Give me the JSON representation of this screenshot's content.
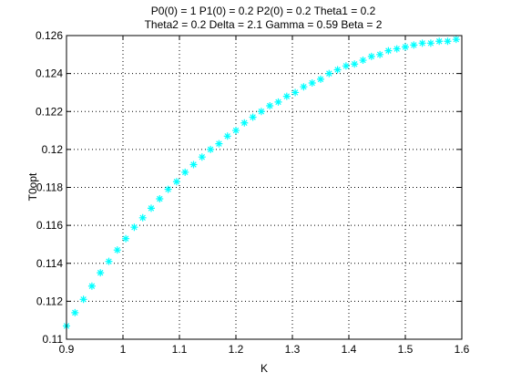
{
  "chart_data": {
    "type": "scatter",
    "title_lines": [
      "P0(0) = 1 P1(0) = 0.2 P2(0) = 0.2 Theta1 = 0.2",
      "Theta2 = 0.2 Delta = 2.1 Gamma = 0.59 Beta = 2"
    ],
    "xlabel": "K",
    "ylabel": "T0opt",
    "xlim": [
      0.9,
      1.6
    ],
    "ylim": [
      0.11,
      0.126
    ],
    "xticks": [
      0.9,
      1,
      1.1,
      1.2,
      1.3,
      1.4,
      1.5,
      1.6
    ],
    "xtick_labels": [
      "0.9",
      "1",
      "1.1",
      "1.2",
      "1.3",
      "1.4",
      "1.5",
      "1.6"
    ],
    "yticks": [
      0.11,
      0.112,
      0.114,
      0.116,
      0.118,
      0.12,
      0.122,
      0.124,
      0.126
    ],
    "ytick_labels": [
      "0.11",
      "0.112",
      "0.114",
      "0.116",
      "0.118",
      "0.12",
      "0.122",
      "0.124",
      "0.126"
    ],
    "grid": true,
    "marker": "*",
    "series": [
      {
        "color": "#00ffff",
        "x": [
          0.9,
          0.915,
          0.93,
          0.945,
          0.96,
          0.975,
          0.99,
          1.005,
          1.02,
          1.035,
          1.05,
          1.065,
          1.08,
          1.095,
          1.11,
          1.125,
          1.14,
          1.155,
          1.17,
          1.185,
          1.2,
          1.215,
          1.23,
          1.245,
          1.26,
          1.275,
          1.29,
          1.305,
          1.32,
          1.335,
          1.35,
          1.365,
          1.38,
          1.395,
          1.41,
          1.425,
          1.44,
          1.455,
          1.47,
          1.485,
          1.5,
          1.515,
          1.53,
          1.545,
          1.56,
          1.575,
          1.59
        ],
        "y": [
          0.1107,
          0.1114,
          0.1121,
          0.1128,
          0.1135,
          0.1141,
          0.1147,
          0.1153,
          0.1159,
          0.1164,
          0.1169,
          0.1174,
          0.1179,
          0.1183,
          0.1188,
          0.1192,
          0.1196,
          0.12,
          0.1203,
          0.1207,
          0.121,
          0.1214,
          0.1217,
          0.122,
          0.1223,
          0.1225,
          0.1228,
          0.123,
          0.1233,
          0.1235,
          0.1237,
          0.124,
          0.1242,
          0.1244,
          0.1245,
          0.1247,
          0.1249,
          0.125,
          0.1252,
          0.1253,
          0.1254,
          0.1255,
          0.1256,
          0.1256,
          0.1257,
          0.1257,
          0.1258
        ]
      }
    ]
  }
}
